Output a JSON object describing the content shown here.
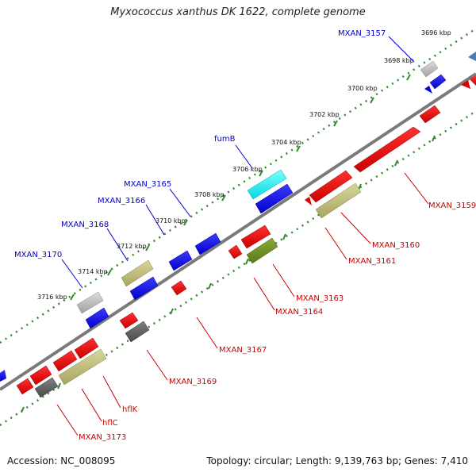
{
  "title": "Myxococcus xanthus DK 1622, complete genome",
  "footer": {
    "accession": "Accession: NC_008095",
    "topology": "Topology: circular; Length: 9,139,763 bp; Genes: 7,410"
  },
  "colors": {
    "forward_label": "#0000cc",
    "reverse_label": "#cc0000",
    "backbone": "#7a7a7a",
    "scale_track": "#2e8b2e"
  },
  "kbp_ticks": [
    "3696 kbp",
    "3698 kbp",
    "3700 kbp",
    "3702 kbp",
    "3704 kbp",
    "3706 kbp",
    "3708 kbp",
    "3710 kbp",
    "3712 kbp",
    "3714 kbp",
    "3716 kbp"
  ],
  "gene_labels_top": [
    "MXAN_3157",
    "fumB",
    "MXAN_3165",
    "MXAN_3166",
    "MXAN_3168",
    "MXAN_3170"
  ],
  "gene_labels_bottom": [
    "MXAN_3159",
    "MXAN_3160",
    "MXAN_3161",
    "MXAN_3163",
    "MXAN_3164",
    "MXAN_3167",
    "MXAN_3169",
    "hflK",
    "hflC",
    "MXAN_3173"
  ]
}
